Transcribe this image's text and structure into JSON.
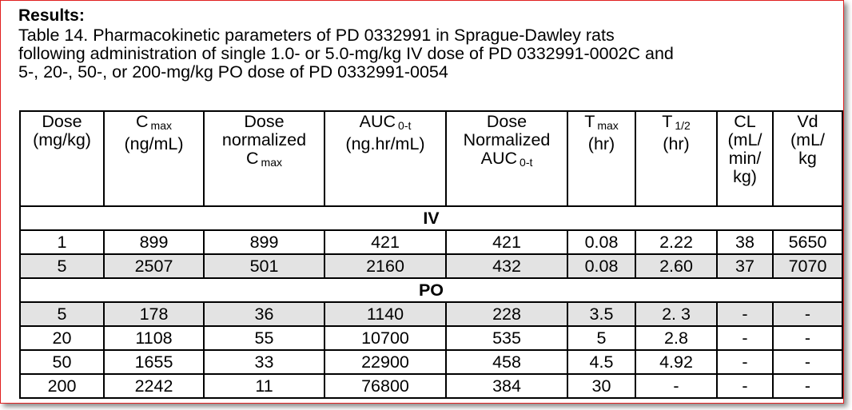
{
  "heading": "Results:",
  "caption": [
    "Table 14.  Pharmacokinetic parameters of PD 0332991 in Sprague-Dawley rats",
    "following administration of single 1.0- or 5.0-mg/kg IV dose of PD 0332991-0002C and",
    "5-, 20-, 50-, or 200-mg/kg PO dose of PD 0332991-0054"
  ],
  "table": {
    "columns": [
      [
        {
          "text": "Dose"
        },
        {
          "text": "(mg/kg)"
        }
      ],
      [
        {
          "text": "C",
          "sub": "max"
        },
        {
          "text": "(ng/mL)"
        }
      ],
      [
        {
          "text": "Dose"
        },
        {
          "text": "normalized"
        },
        {
          "text": "C",
          "sub": "max"
        }
      ],
      [
        {
          "text": "AUC",
          "sub": "0-t"
        },
        {
          "text": "(ng.hr/mL)"
        }
      ],
      [
        {
          "text": "Dose"
        },
        {
          "text": "Normalized"
        },
        {
          "text": "AUC",
          "sub": "0-t"
        }
      ],
      [
        {
          "text": "T",
          "sub": "max"
        },
        {
          "text": "(hr)"
        }
      ],
      [
        {
          "text": "T",
          "sub": "1/2"
        },
        {
          "text": "(hr)"
        }
      ],
      [
        {
          "text": "CL"
        },
        {
          "text": "(mL/"
        },
        {
          "text": "min/"
        },
        {
          "text": "kg)"
        }
      ],
      [
        {
          "text": "Vd"
        },
        {
          "text": "(mL/"
        },
        {
          "text": "kg"
        }
      ]
    ],
    "sections": [
      {
        "label": "IV",
        "rows": [
          [
            "1",
            "899",
            "899",
            "421",
            "421",
            "0.08",
            "2.22",
            "38",
            "5650"
          ],
          [
            "5",
            "2507",
            "501",
            "2160",
            "432",
            "0.08",
            "2.60",
            "37",
            "7070"
          ]
        ]
      },
      {
        "label": "PO",
        "rows": [
          [
            "5",
            "178",
            "36",
            "1140",
            "228",
            "3.5",
            "2. 3",
            "-",
            "-"
          ],
          [
            "20",
            "1108",
            "55",
            "10700",
            "535",
            "5",
            "2.8",
            "-",
            "-"
          ],
          [
            "50",
            "1655",
            "33",
            "22900",
            "458",
            "4.5",
            "4.92",
            "-",
            "-"
          ],
          [
            "200",
            "2242",
            "11",
            "76800",
            "384",
            "30",
            "-",
            "-",
            "-"
          ]
        ]
      }
    ]
  }
}
